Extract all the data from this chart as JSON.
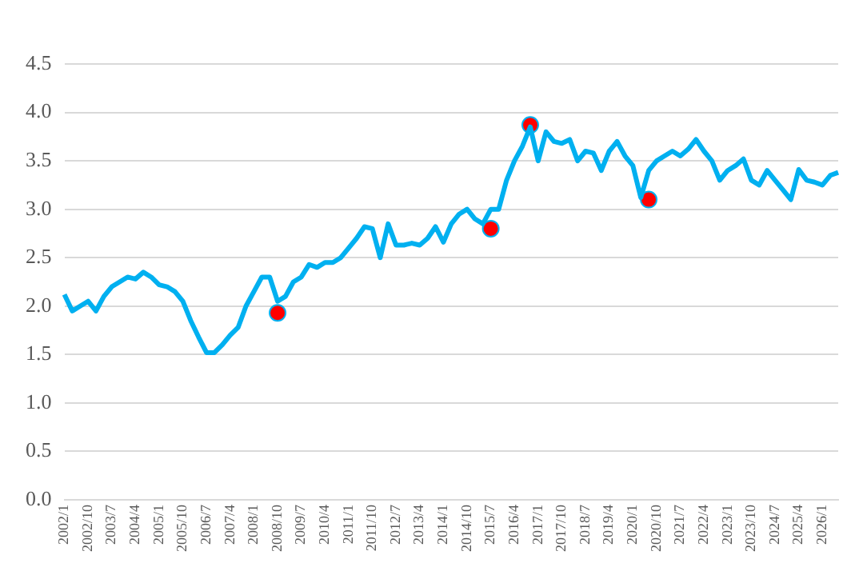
{
  "chart_data": {
    "type": "line",
    "categories": [
      "2002/1",
      null,
      null,
      "2002/10",
      null,
      null,
      "2003/7",
      null,
      null,
      "2004/4",
      null,
      null,
      "2005/1",
      null,
      null,
      "2005/10",
      null,
      null,
      "2006/7",
      null,
      null,
      "2007/4",
      null,
      null,
      "2008/1",
      null,
      null,
      "2008/10",
      null,
      null,
      "2009/7",
      null,
      null,
      "2010/4",
      null,
      null,
      "2011/1",
      null,
      null,
      "2011/10",
      null,
      null,
      "2012/7",
      null,
      null,
      "2013/4",
      null,
      null,
      "2014/1",
      null,
      null,
      "2014/10",
      null,
      null,
      "2015/7",
      null,
      null,
      "2016/4",
      null,
      null,
      "2017/1",
      null,
      null,
      "2017/10",
      null,
      null,
      "2018/7",
      null,
      null,
      "2019/4",
      null,
      null,
      "2020/1",
      null,
      null,
      "2020/10",
      null,
      null,
      "2021/7",
      null,
      null,
      "2022/4",
      null,
      null,
      "2023/1",
      null,
      null,
      "2023/10",
      null,
      null,
      "2024/7",
      null,
      null,
      "2025/4",
      null,
      null,
      "2026/1",
      null,
      null
    ],
    "series": [
      {
        "color": "#00b0f0",
        "marker": "none",
        "values": [
          2.12,
          1.95,
          2.0,
          2.05,
          1.95,
          2.1,
          2.2,
          2.25,
          2.3,
          2.28,
          2.35,
          2.3,
          2.22,
          2.2,
          2.15,
          2.05,
          1.85,
          1.68,
          1.52,
          1.52,
          1.6,
          1.7,
          1.78,
          2.0,
          2.15,
          2.3,
          2.3,
          2.05,
          2.1,
          2.25,
          2.3,
          2.43,
          2.4,
          2.45,
          2.45,
          2.5,
          2.6,
          2.7,
          2.82,
          2.8,
          2.5,
          2.85,
          2.63,
          2.63,
          2.65,
          2.63,
          2.7,
          2.82,
          2.66,
          2.85,
          2.95,
          3.0,
          2.9,
          2.85,
          3.0,
          3.0,
          3.3,
          3.5,
          3.65,
          3.85,
          3.5,
          3.8,
          3.7,
          3.68,
          3.72,
          3.5,
          3.6,
          3.58,
          3.4,
          3.6,
          3.7,
          3.55,
          3.45,
          3.12,
          3.4,
          3.5,
          3.55,
          3.6,
          3.55,
          3.62,
          3.72,
          3.6,
          3.5,
          3.3,
          3.4,
          3.45,
          3.52,
          3.3,
          3.25,
          3.4,
          3.3,
          3.2,
          3.1,
          3.41,
          3.3,
          3.28,
          3.25,
          3.35,
          3.38
        ]
      },
      {
        "type": "scatter",
        "color": "#ff0000",
        "marker": "circle",
        "values": [
          null,
          null,
          null,
          null,
          null,
          null,
          null,
          null,
          null,
          null,
          null,
          null,
          null,
          null,
          null,
          null,
          null,
          null,
          null,
          null,
          null,
          null,
          null,
          null,
          null,
          null,
          null,
          1.93,
          null,
          null,
          null,
          null,
          null,
          null,
          null,
          null,
          null,
          null,
          null,
          null,
          null,
          null,
          null,
          null,
          null,
          null,
          null,
          null,
          null,
          null,
          null,
          null,
          null,
          null,
          2.8,
          null,
          null,
          null,
          null,
          3.87,
          null,
          null,
          null,
          null,
          null,
          null,
          null,
          null,
          null,
          null,
          null,
          null,
          null,
          null,
          3.1,
          null,
          null,
          null,
          null,
          null,
          null,
          null,
          null,
          null,
          null,
          null,
          null,
          null,
          null,
          null,
          null,
          null,
          null,
          null,
          null,
          null,
          null,
          null,
          null
        ]
      }
    ],
    "ylim": [
      0,
      4.5
    ],
    "yticks": [
      {
        "value": 0,
        "label": "0.0"
      },
      {
        "value": 0.5,
        "label": "0.5"
      },
      {
        "value": 1,
        "label": "1.0"
      },
      {
        "value": 1.5,
        "label": "1.5"
      },
      {
        "value": 2,
        "label": "2.0"
      },
      {
        "value": 2.5,
        "label": "2.5"
      },
      {
        "value": 3,
        "label": "3.0"
      },
      {
        "value": 3.5,
        "label": "3.5"
      },
      {
        "value": 4,
        "label": "4.0"
      },
      {
        "value": 4.5,
        "label": "4.5"
      }
    ],
    "grid": "y",
    "legend": false
  }
}
